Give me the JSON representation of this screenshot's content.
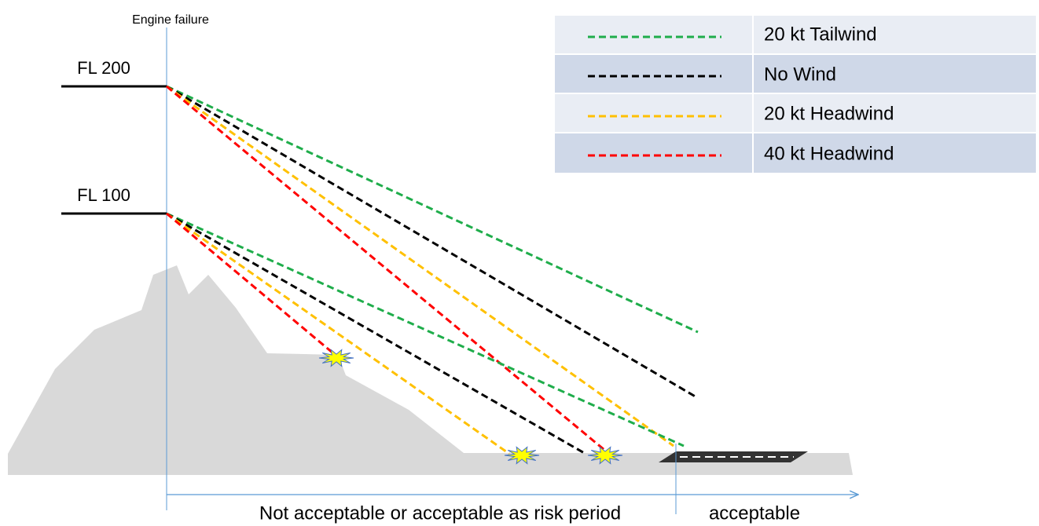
{
  "header": {
    "label": "Engine failure"
  },
  "levels": [
    "FL 200",
    "FL 100"
  ],
  "legend": {
    "items": [
      "20 kt Tailwind",
      "No Wind",
      "20 kt Headwind",
      "40 kt Headwind"
    ]
  },
  "footer": {
    "left": "Not acceptable or acceptable as risk period",
    "right": "acceptable"
  }
}
